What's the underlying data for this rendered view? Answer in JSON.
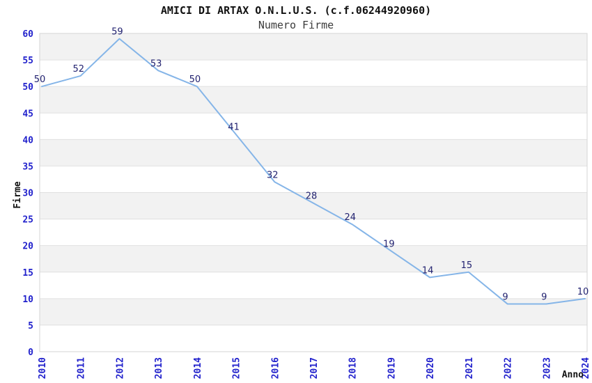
{
  "chart_data": {
    "type": "line",
    "title": "AMICI DI ARTAX O.N.L.U.S. (c.f.06244920960)",
    "subtitle": "Numero Firme",
    "xlabel": "Anno",
    "ylabel": "Firme",
    "categories": [
      "2010",
      "2011",
      "2012",
      "2013",
      "2014",
      "2015",
      "2016",
      "2017",
      "2018",
      "2019",
      "2020",
      "2021",
      "2022",
      "2023",
      "2024"
    ],
    "series": [
      {
        "name": "Numero Firme",
        "values": [
          50,
          52,
          59,
          53,
          50,
          41,
          32,
          28,
          24,
          19,
          14,
          15,
          9,
          9,
          10
        ]
      }
    ],
    "ylim": [
      0,
      60
    ],
    "ytick_step": 5,
    "yticks": [
      0,
      5,
      10,
      15,
      20,
      25,
      30,
      35,
      40,
      45,
      50,
      55,
      60
    ],
    "grid": "horizontal gridlines with alternating shaded bands",
    "legend": "none",
    "data_labels": true,
    "colors": {
      "line": "#85b5e8",
      "point_label": "#222270",
      "tick_label": "#2222cc",
      "band_shaded": "#f2f2f2",
      "band_plain": "#ffffff",
      "gridline": "#e0e0e0",
      "plot_border": "#d4d4d4",
      "title": "#111111",
      "subtitle": "#3c3c3c",
      "axis_label": "#111111",
      "background": "#ffffff"
    }
  }
}
